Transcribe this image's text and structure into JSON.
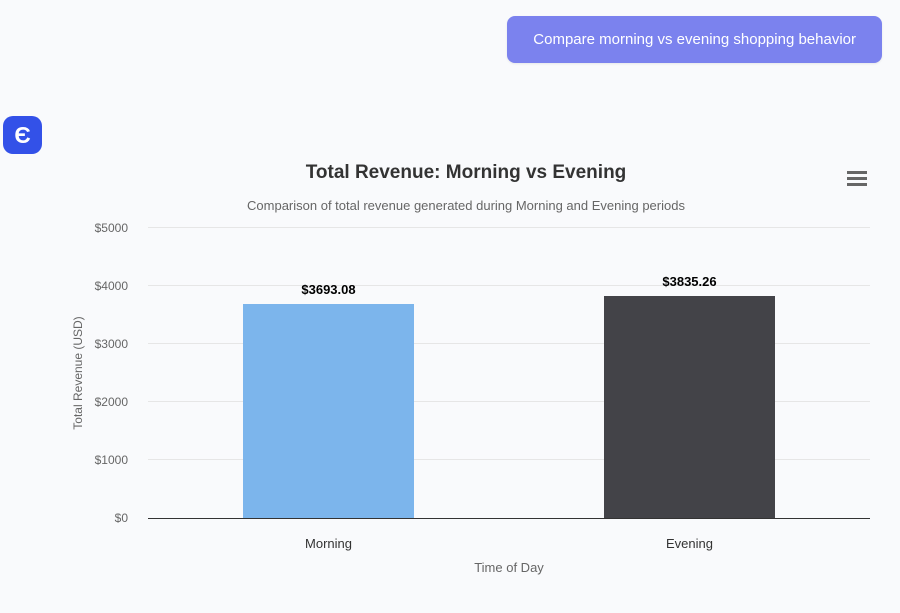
{
  "chat": {
    "user_message": "Compare morning vs evening shopping behavior",
    "avatar_glyph": "Є"
  },
  "colors": {
    "button_bg": "#7b82ee",
    "avatar_bg": "#3351e8",
    "grid": "#e6e6e6",
    "axis_line": "#333333"
  },
  "chart_data": {
    "type": "bar",
    "title": "Total Revenue: Morning vs Evening",
    "subtitle": "Comparison of total revenue generated during Morning and Evening periods",
    "categories": [
      "Morning",
      "Evening"
    ],
    "values": [
      3693.08,
      3835.26
    ],
    "value_labels": [
      "$3693.08",
      "$3835.26"
    ],
    "bar_colors": [
      "#7cb5ec",
      "#434348"
    ],
    "xlabel": "Time of Day",
    "ylabel": "Total Revenue (USD)",
    "ylim": [
      0,
      5000
    ],
    "ytick_step": 1000,
    "ytick_labels": [
      "$0",
      "$1000",
      "$2000",
      "$3000",
      "$4000",
      "$5000"
    ],
    "grid": true,
    "legend": false,
    "context_menu": "hamburger"
  }
}
